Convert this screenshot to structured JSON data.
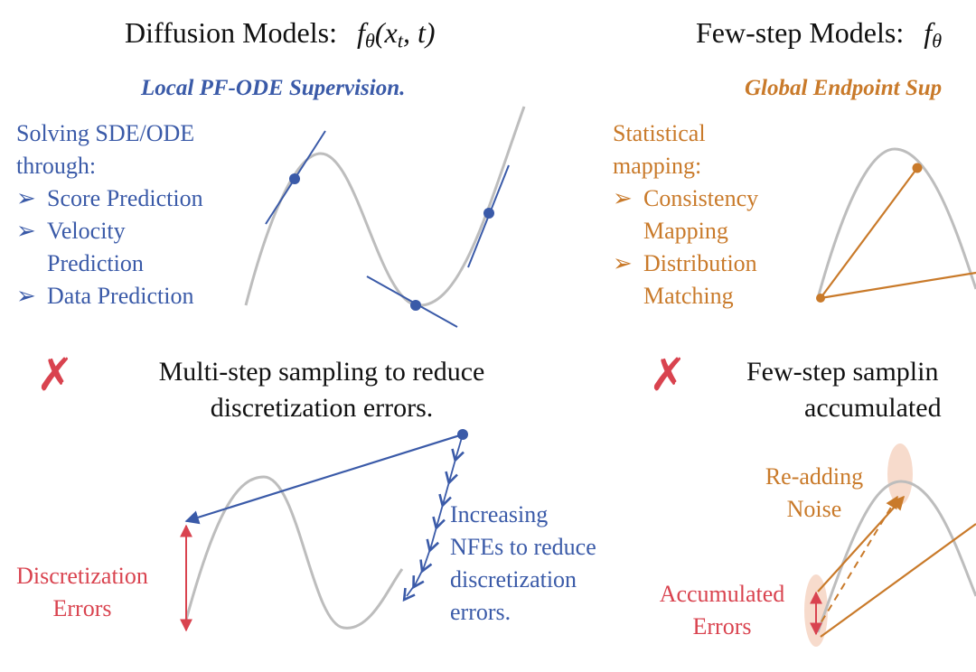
{
  "colors": {
    "blue": "#3a5aa8",
    "orange": "#c97a2a",
    "red": "#d9434f",
    "curve": "#bdbdbd",
    "halo": "#f6d5c3"
  },
  "left": {
    "title_text": "Diffusion Models:",
    "title_math_f": "f",
    "title_math_sub": "θ",
    "title_math_args": "(x",
    "title_math_args_sub": "t",
    "title_math_tail": ", t)",
    "subtitle": "Local PF-ODE Supervision.",
    "desc_line1": "Solving SDE/ODE",
    "desc_line2": "through:",
    "bullet_glyph": "➢",
    "bullets": [
      "Score Prediction",
      "Velocity",
      "Prediction",
      "Data Prediction"
    ],
    "claim_icon": "✗",
    "claim_line1": "Multi-step sampling to reduce",
    "claim_line2": "discretization errors.",
    "error_label_line1": "Discretization",
    "error_label_line2": "Errors",
    "nfe_line1": "Increasing",
    "nfe_line2": "NFEs to reduce",
    "nfe_line3": "discretization",
    "nfe_line4": "errors."
  },
  "right": {
    "title_text": "Few-step Models:",
    "title_math_f": "f",
    "title_math_sub": "θ",
    "subtitle": "Global Endpoint Sup",
    "desc_line1": "Statistical",
    "desc_line2": "mapping:",
    "bullet_glyph": "➢",
    "bullets": [
      "Consistency",
      "Mapping",
      "Distribution",
      "Matching"
    ],
    "claim_icon": "✗",
    "claim_line1": "Few-step samplin",
    "claim_line2": "accumulated",
    "noise_line1": "Re-adding",
    "noise_line2": "Noise",
    "acc_line1": "Accumulated",
    "acc_line2": "Errors"
  }
}
